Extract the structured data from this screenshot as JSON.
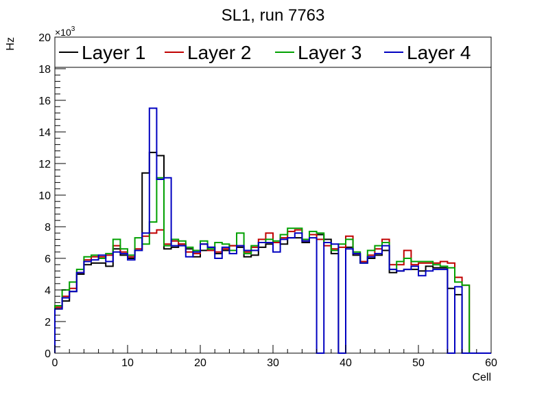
{
  "chart_data": {
    "type": "step-histogram",
    "title": "SL1, run 7763",
    "xlabel": "Cell",
    "ylabel": "Hz",
    "y_multiplier": "×10",
    "y_multiplier_exp": "3",
    "xlim": [
      0,
      60
    ],
    "ylim": [
      0,
      20
    ],
    "x_ticks": [
      0,
      10,
      20,
      30,
      40,
      50,
      60
    ],
    "y_ticks": [
      0,
      2,
      4,
      6,
      8,
      10,
      12,
      14,
      16,
      18,
      20
    ],
    "bin_edges_start": 0,
    "bin_width": 1,
    "series": [
      {
        "name": "Layer 1",
        "color": "#000000",
        "values": [
          2.8,
          3.3,
          3.9,
          5.0,
          5.6,
          5.7,
          5.7,
          5.5,
          6.6,
          6.2,
          6.0,
          6.5,
          11.4,
          12.7,
          12.5,
          6.6,
          6.7,
          6.9,
          6.6,
          6.1,
          6.5,
          6.7,
          6.3,
          6.5,
          6.8,
          6.7,
          6.1,
          6.2,
          6.7,
          6.9,
          7.0,
          6.9,
          7.3,
          7.3,
          7.0,
          7.5,
          7.5,
          7.2,
          6.3,
          0,
          6.7,
          6.2,
          5.7,
          6.0,
          6.2,
          6.5,
          5.1,
          5.2,
          5.3,
          5.3,
          5.2,
          5.5,
          5.4,
          5.4,
          4.1,
          3.7,
          0,
          0,
          0,
          0
        ]
      },
      {
        "name": "Layer 2",
        "color": "#c00000",
        "values": [
          2.9,
          3.6,
          4.1,
          5.1,
          5.9,
          6.1,
          6.1,
          6.2,
          6.8,
          6.4,
          6.1,
          6.6,
          7.4,
          7.6,
          7.8,
          6.9,
          7.1,
          6.9,
          6.4,
          6.3,
          6.9,
          6.5,
          6.4,
          6.6,
          6.8,
          6.8,
          6.4,
          6.7,
          7.2,
          7.6,
          7.0,
          7.3,
          7.7,
          7.8,
          7.1,
          7.5,
          7.2,
          6.8,
          6.6,
          6.7,
          7.4,
          6.3,
          5.8,
          6.2,
          6.6,
          7.2,
          5.6,
          5.6,
          6.5,
          5.6,
          5.7,
          5.7,
          5.7,
          5.8,
          5.7,
          4.8,
          4.3,
          0,
          0,
          0
        ]
      },
      {
        "name": "Layer 3",
        "color": "#00a000",
        "values": [
          3.0,
          4.0,
          4.5,
          5.3,
          6.1,
          6.2,
          6.0,
          6.3,
          7.2,
          6.6,
          6.2,
          7.3,
          6.9,
          8.3,
          11.1,
          6.8,
          7.2,
          7.1,
          6.7,
          6.5,
          7.1,
          6.6,
          7.0,
          6.9,
          6.5,
          7.6,
          6.3,
          6.8,
          7.0,
          7.2,
          7.1,
          7.5,
          7.9,
          7.9,
          7.2,
          7.7,
          7.6,
          7.0,
          6.5,
          6.9,
          7.2,
          6.4,
          5.7,
          6.5,
          6.8,
          7.0,
          5.3,
          5.8,
          6.0,
          5.8,
          5.8,
          5.8,
          5.6,
          5.5,
          5.4,
          4.5,
          4.3,
          0,
          0,
          0
        ]
      },
      {
        "name": "Layer 4",
        "color": "#0000c0",
        "values": [
          2.8,
          3.5,
          3.9,
          5.1,
          5.8,
          5.9,
          6.2,
          5.8,
          6.4,
          6.3,
          5.9,
          6.5,
          7.6,
          15.5,
          11.0,
          11.1,
          6.8,
          6.8,
          6.1,
          6.4,
          6.9,
          6.7,
          6.0,
          6.7,
          6.3,
          6.8,
          6.5,
          6.5,
          7.0,
          7.0,
          6.4,
          7.2,
          7.3,
          7.6,
          7.1,
          7.3,
          0,
          7.0,
          6.9,
          0,
          6.6,
          6.3,
          5.7,
          6.1,
          6.3,
          6.8,
          5.3,
          5.2,
          5.3,
          5.5,
          4.9,
          5.2,
          5.3,
          5.3,
          0,
          4.2,
          0,
          0,
          0,
          0
        ]
      }
    ],
    "legend": [
      "Layer 1",
      "Layer 2",
      "Layer 3",
      "Layer 4"
    ],
    "legend_position": "top",
    "grid": false
  }
}
